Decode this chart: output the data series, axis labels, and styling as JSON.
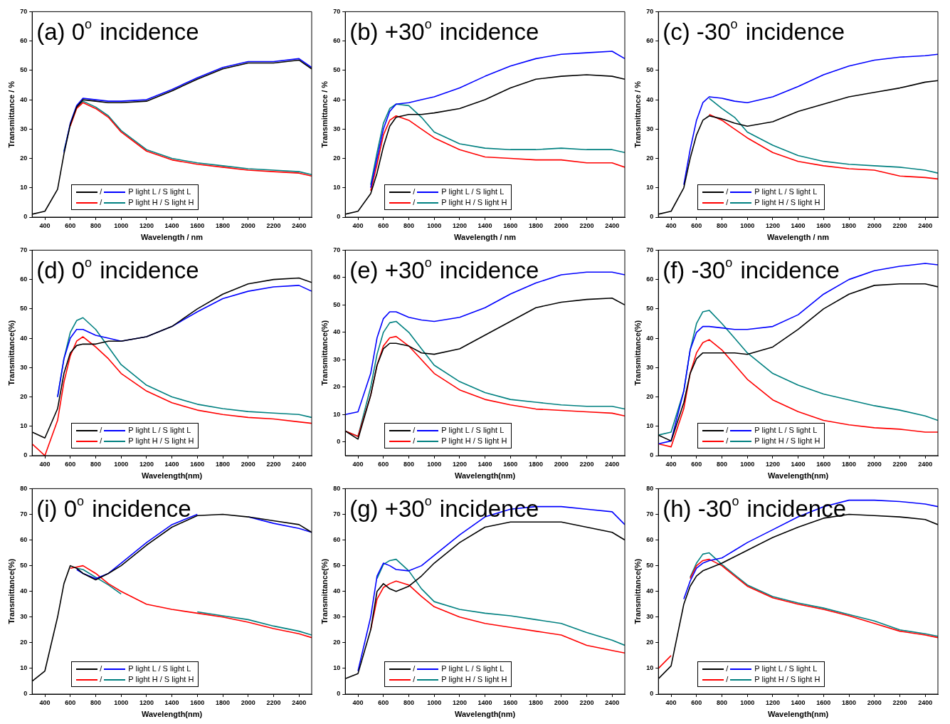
{
  "chart_data": [
    {
      "type": "line",
      "title": "(a) 0$^{o}$ incidence",
      "xlabel": "Wavelength / nm",
      "ylabel": "Transmittance / %",
      "xlim": [
        300,
        2500
      ],
      "xticks": [
        400,
        600,
        800,
        1000,
        1200,
        1400,
        1600,
        1800,
        2000,
        2200,
        2400
      ],
      "ylim": [
        0,
        70
      ],
      "yticks": [
        0,
        10,
        20,
        30,
        40,
        50,
        60,
        70
      ],
      "legend": "bottom",
      "marker": "none",
      "annotations": [
        "/"
      ],
      "x": [
        300,
        400,
        500,
        550,
        600,
        650,
        700,
        800,
        900,
        1000,
        1200,
        1400,
        1600,
        1800,
        2000,
        2200,
        2400,
        2500
      ],
      "series": [
        {
          "color": "#000000",
          "values": [
            1,
            2,
            9.5,
            21.5,
            31.5,
            37.5,
            40,
            39.5,
            39,
            39,
            39.5,
            43,
            47,
            50.5,
            52.5,
            52.5,
            53.5,
            50.5
          ]
        },
        {
          "name": "P light L / S light L",
          "color": "#0000ff",
          "values": [
            null,
            null,
            null,
            22,
            32,
            38,
            40.5,
            40,
            39.5,
            39.5,
            40,
            43.5,
            47.5,
            51,
            53,
            53,
            54,
            51
          ]
        },
        {
          "color": "#ff0000",
          "values": [
            null,
            null,
            null,
            null,
            31,
            37,
            39,
            37,
            34,
            29,
            22.5,
            19.5,
            18,
            17,
            16,
            15.5,
            15,
            14
          ]
        },
        {
          "name": "P light H / S light H",
          "color": "#008080",
          "values": [
            null,
            null,
            null,
            22.5,
            31.5,
            37.5,
            39.5,
            37.5,
            34.5,
            29.5,
            23,
            20,
            18.5,
            17.5,
            16.5,
            16,
            15.5,
            14.5
          ]
        }
      ]
    },
    {
      "type": "line",
      "title": "(b) +30$^{o}$ incidence",
      "xlabel": "Wavelength / nm",
      "ylabel": "Transmittance / %",
      "xlim": [
        300,
        2500
      ],
      "xticks": [
        400,
        600,
        800,
        1000,
        1200,
        1400,
        1600,
        1800,
        2000,
        2200,
        2400
      ],
      "ylim": [
        0,
        70
      ],
      "yticks": [
        0,
        10,
        20,
        30,
        40,
        50,
        60,
        70
      ],
      "legend": "bottom",
      "marker": "none",
      "annotations": [
        "/"
      ],
      "x": [
        300,
        400,
        500,
        550,
        600,
        650,
        700,
        800,
        900,
        1000,
        1200,
        1400,
        1600,
        1800,
        2000,
        2200,
        2400,
        2500
      ],
      "series": [
        {
          "color": "#000000",
          "values": [
            1,
            2,
            8,
            15,
            24,
            31,
            34,
            35,
            35,
            35.5,
            37,
            40,
            44,
            47,
            48,
            48.5,
            48,
            47
          ]
        },
        {
          "name": "P light L / S light L",
          "color": "#0000ff",
          "values": [
            null,
            null,
            10,
            20,
            30,
            36,
            38.5,
            39,
            40,
            41,
            44,
            48,
            51.5,
            54,
            55.5,
            56,
            56.5,
            54
          ]
        },
        {
          "color": "#ff0000",
          "values": [
            null,
            null,
            9,
            18,
            28,
            33,
            34.5,
            33,
            30,
            27,
            23,
            20.5,
            20,
            19.5,
            19.5,
            18.5,
            18.5,
            17
          ]
        },
        {
          "name": "P light H / S light H",
          "color": "#008080",
          "values": [
            null,
            null,
            11,
            22,
            32,
            37,
            38.5,
            38,
            34,
            29,
            25,
            23.5,
            23,
            23,
            23.5,
            23,
            23,
            22
          ]
        }
      ]
    },
    {
      "type": "line",
      "title": "(c) -30$^{o}$ incidence",
      "xlabel": "Wavelength / nm",
      "ylabel": "Transmittance / %",
      "xlim": [
        300,
        2500
      ],
      "xticks": [
        400,
        600,
        800,
        1000,
        1200,
        1400,
        1600,
        1800,
        2000,
        2200,
        2400
      ],
      "ylim": [
        0,
        70
      ],
      "yticks": [
        0,
        10,
        20,
        30,
        40,
        50,
        60,
        70
      ],
      "legend": "bottom",
      "marker": "none",
      "annotations": [
        "/"
      ],
      "x": [
        300,
        400,
        500,
        550,
        600,
        650,
        700,
        800,
        900,
        1000,
        1200,
        1400,
        1600,
        1800,
        2000,
        2200,
        2400,
        2500
      ],
      "series": [
        {
          "color": "#000000",
          "values": [
            1,
            2,
            10,
            20,
            28,
            33,
            34.5,
            33.5,
            32,
            31,
            32.5,
            36,
            38.5,
            41,
            42.5,
            44,
            46,
            46.5
          ]
        },
        {
          "name": "P light L / S light L",
          "color": "#0000ff",
          "values": [
            null,
            null,
            11,
            23,
            33,
            39,
            41,
            40.5,
            39.5,
            39,
            41,
            44.5,
            48.5,
            51.5,
            53.5,
            54.5,
            55,
            55.5
          ]
        },
        {
          "color": "#ff0000",
          "values": [
            null,
            null,
            null,
            null,
            null,
            null,
            35,
            33,
            30,
            27,
            22,
            19,
            17.5,
            16.5,
            16,
            14,
            13.5,
            13
          ]
        },
        {
          "name": "P light H / S light H",
          "color": "#008080",
          "values": [
            null,
            null,
            null,
            null,
            null,
            null,
            40.5,
            37,
            34,
            29,
            24.5,
            21,
            19,
            18,
            17.5,
            17,
            16,
            15
          ]
        }
      ]
    },
    {
      "type": "line",
      "title": "(d) 0$^{o}$ incidence",
      "xlabel": "Wavelength(nm)",
      "ylabel": "Transmittance(%)",
      "xlim": [
        300,
        2500
      ],
      "xticks": [
        400,
        600,
        800,
        1000,
        1200,
        1400,
        1600,
        1800,
        2000,
        2200,
        2400
      ],
      "ylim": [
        0,
        70
      ],
      "yticks": [
        0,
        10,
        20,
        30,
        40,
        50,
        60,
        70
      ],
      "legend": "bottom",
      "marker": "none",
      "annotations": [
        "/"
      ],
      "x": [
        300,
        400,
        500,
        550,
        600,
        650,
        700,
        800,
        900,
        1000,
        1200,
        1400,
        1600,
        1800,
        2000,
        2200,
        2400,
        2500
      ],
      "series": [
        {
          "color": "#000000",
          "values": [
            8,
            6,
            16,
            28,
            35,
            37.5,
            38,
            38,
            39,
            39,
            40.5,
            44,
            50,
            55,
            58.5,
            60,
            60.5,
            59
          ]
        },
        {
          "name": "P light L / S light L",
          "color": "#0000ff",
          "values": [
            null,
            null,
            20,
            33,
            40,
            43,
            43,
            41,
            40,
            39,
            40.5,
            44,
            49,
            53.5,
            56,
            57.5,
            58,
            56
          ]
        },
        {
          "color": "#ff0000",
          "values": [
            4,
            0,
            12,
            25,
            34,
            39,
            40.5,
            37,
            33,
            28,
            22,
            18,
            15.5,
            14,
            13,
            12.5,
            11.5,
            11
          ]
        },
        {
          "name": "P light H / S light H",
          "color": "#008080",
          "values": [
            null,
            null,
            20,
            33,
            42,
            46,
            47,
            43,
            37,
            31,
            24,
            20,
            17.5,
            16,
            15,
            14.5,
            14,
            13
          ]
        }
      ]
    },
    {
      "type": "line",
      "title": "(e) +30$^{o}$ incidence",
      "xlabel": "Wavelength(nm)",
      "ylabel": "Transmittance(%)",
      "xlim": [
        300,
        2500
      ],
      "xticks": [
        400,
        600,
        800,
        1000,
        1200,
        1400,
        1600,
        1800,
        2000,
        2200,
        2400
      ],
      "ylim": [
        -5,
        70
      ],
      "yticks": [
        0,
        10,
        20,
        30,
        40,
        50,
        60,
        70
      ],
      "legend": "bottom",
      "marker": "none",
      "annotations": [
        "/"
      ],
      "x": [
        300,
        400,
        500,
        550,
        600,
        650,
        700,
        800,
        900,
        1000,
        1200,
        1400,
        1600,
        1800,
        2000,
        2200,
        2400,
        2500
      ],
      "series": [
        {
          "color": "#000000",
          "values": [
            4,
            1,
            17,
            28,
            34,
            36,
            36,
            35,
            32.5,
            32,
            34,
            39,
            44,
            49,
            51,
            52,
            52.5,
            50
          ]
        },
        {
          "name": "P light L / S light L",
          "color": "#0000ff",
          "values": [
            10,
            11,
            25,
            38,
            45,
            47.5,
            47.5,
            45.5,
            44.5,
            44,
            45.5,
            49,
            54,
            58,
            61,
            62,
            62,
            61
          ]
        },
        {
          "color": "#ff0000",
          "values": [
            4,
            2,
            17,
            28,
            35,
            38,
            38.5,
            35,
            30,
            25,
            19,
            15.5,
            13.5,
            12,
            11.5,
            11,
            10.5,
            9.5
          ]
        },
        {
          "name": "P light H / S light H",
          "color": "#008080",
          "values": [
            4,
            2,
            20,
            32,
            40,
            43.5,
            44,
            40,
            34,
            28,
            22,
            18,
            15.5,
            14.5,
            13.5,
            13,
            13,
            12
          ]
        }
      ]
    },
    {
      "type": "line",
      "title": "(f) -30$^{o}$ incidence",
      "xlabel": "Wavelength(nm)",
      "ylabel": "Transmittance(%)",
      "xlim": [
        300,
        2500
      ],
      "xticks": [
        400,
        600,
        800,
        1000,
        1200,
        1400,
        1600,
        1800,
        2000,
        2200,
        2400
      ],
      "ylim": [
        0,
        70
      ],
      "yticks": [
        0,
        10,
        20,
        30,
        40,
        50,
        60,
        70
      ],
      "legend": "bottom",
      "marker": "none",
      "annotations": [
        "/"
      ],
      "x": [
        300,
        400,
        500,
        550,
        600,
        650,
        700,
        800,
        900,
        1000,
        1200,
        1400,
        1600,
        1800,
        2000,
        2200,
        2400,
        2500
      ],
      "series": [
        {
          "color": "#000000",
          "values": [
            7,
            5,
            18,
            28,
            33,
            35,
            35,
            35,
            35,
            34.5,
            37,
            43,
            50,
            55,
            58,
            58.5,
            58.5,
            57.5
          ]
        },
        {
          "name": "P light L / S light L",
          "color": "#0000ff",
          "values": [
            4,
            5,
            22,
            36,
            42,
            44,
            44,
            43.5,
            43,
            43,
            44,
            48,
            55,
            60,
            63,
            64.5,
            65.5,
            65
          ]
        },
        {
          "color": "#ff0000",
          "values": [
            4,
            3,
            16,
            28,
            35,
            38.5,
            39.5,
            36,
            31,
            26,
            19,
            15,
            12,
            10.5,
            9.5,
            9,
            8,
            8
          ]
        },
        {
          "name": "P light H / S light H",
          "color": "#008080",
          "values": [
            7,
            8,
            22,
            36,
            45,
            49,
            49.5,
            45,
            40,
            35,
            28,
            24,
            21,
            19,
            17,
            15.5,
            13.5,
            12
          ]
        }
      ]
    },
    {
      "type": "line",
      "title": "(i) 0$^{o}$ incidence",
      "xlabel": "Wavelength(nm)",
      "ylabel": "Transmittance(%)",
      "xlim": [
        300,
        2500
      ],
      "xticks": [
        400,
        600,
        800,
        1000,
        1200,
        1400,
        1600,
        1800,
        2000,
        2200,
        2400
      ],
      "ylim": [
        0,
        80
      ],
      "yticks": [
        0,
        10,
        20,
        30,
        40,
        50,
        60,
        70,
        80
      ],
      "legend": "bottom",
      "marker": "none",
      "annotations": [
        "/"
      ],
      "x": [
        300,
        400,
        500,
        550,
        600,
        650,
        700,
        800,
        900,
        1000,
        1200,
        1400,
        1600,
        1800,
        2000,
        2200,
        2400,
        2500
      ],
      "series": [
        {
          "color": "#000000",
          "values": [
            5,
            9,
            30,
            43,
            50,
            49,
            47,
            44.5,
            47,
            50,
            58,
            65,
            69.5,
            70,
            69,
            67.5,
            66,
            63
          ]
        },
        {
          "name": "P light L / S light L",
          "color": "#0000ff",
          "values": [
            null,
            null,
            null,
            null,
            null,
            48.5,
            47,
            45,
            47,
            51,
            59,
            66,
            70,
            null,
            69,
            66.5,
            64.5,
            63
          ]
        },
        {
          "color": "#ff0000",
          "values": [
            null,
            null,
            null,
            null,
            49,
            49.5,
            50,
            47,
            43,
            40,
            35,
            33,
            31.5,
            30,
            28,
            25.5,
            23.5,
            22
          ]
        },
        {
          "name": "P light H / S light H",
          "color": "#008080",
          "values": [
            null,
            null,
            null,
            null,
            null,
            49,
            48.5,
            45.5,
            42.5,
            39,
            null,
            null,
            32,
            30.5,
            29,
            26.5,
            24.5,
            23
          ]
        }
      ]
    },
    {
      "type": "line",
      "title": "(g) +30$^{o}$ incidence",
      "xlabel": "Wavelength(nm)",
      "ylabel": "Transmittance(%)",
      "xlim": [
        300,
        2500
      ],
      "xticks": [
        400,
        600,
        800,
        1000,
        1200,
        1400,
        1600,
        1800,
        2000,
        2200,
        2400
      ],
      "ylim": [
        0,
        80
      ],
      "yticks": [
        0,
        10,
        20,
        30,
        40,
        50,
        60,
        70,
        80
      ],
      "legend": "bottom",
      "marker": "none",
      "annotations": [
        "/"
      ],
      "x": [
        300,
        400,
        500,
        550,
        600,
        650,
        700,
        800,
        900,
        1000,
        1200,
        1400,
        1600,
        1800,
        2000,
        2200,
        2400,
        2500
      ],
      "series": [
        {
          "color": "#000000",
          "values": [
            6,
            8,
            25,
            40,
            43,
            41,
            40,
            42,
            46,
            51,
            59,
            65,
            67,
            67,
            67,
            65,
            63,
            60
          ]
        },
        {
          "name": "P light L / S light L",
          "color": "#0000ff",
          "values": [
            null,
            9,
            30,
            46,
            51,
            50,
            48.5,
            48,
            50,
            54,
            62,
            69,
            72,
            73,
            73,
            72,
            71,
            66
          ]
        },
        {
          "color": "#ff0000",
          "values": [
            null,
            null,
            25,
            37,
            41.5,
            43,
            44,
            42.5,
            38,
            34,
            30,
            27.5,
            26,
            24.5,
            23,
            19,
            17,
            16
          ]
        },
        {
          "name": "P light H / S light H",
          "color": "#008080",
          "values": [
            null,
            null,
            null,
            45,
            50.5,
            52,
            52.5,
            48,
            41,
            36,
            33,
            31.5,
            30.5,
            29,
            27.5,
            24,
            21,
            19
          ]
        }
      ]
    },
    {
      "type": "line",
      "title": "(h) -30$^{o}$ incidence",
      "xlabel": "Wavelength(nm)",
      "ylabel": "Transmittance(%)",
      "xlim": [
        300,
        2500
      ],
      "xticks": [
        400,
        600,
        800,
        1000,
        1200,
        1400,
        1600,
        1800,
        2000,
        2200,
        2400
      ],
      "ylim": [
        0,
        80
      ],
      "yticks": [
        0,
        10,
        20,
        30,
        40,
        50,
        60,
        70,
        80
      ],
      "legend": "bottom",
      "marker": "none",
      "annotations": [
        "/"
      ],
      "x": [
        300,
        400,
        500,
        550,
        600,
        650,
        700,
        800,
        900,
        1000,
        1200,
        1400,
        1600,
        1800,
        2000,
        2200,
        2400,
        2500
      ],
      "series": [
        {
          "color": "#000000",
          "values": [
            6,
            11,
            35,
            42,
            46,
            48,
            49,
            51,
            53.5,
            56,
            61,
            65,
            68.5,
            70,
            69.5,
            69,
            68,
            66
          ]
        },
        {
          "name": "P light L / S light L",
          "color": "#0000ff",
          "values": [
            null,
            null,
            37,
            44,
            49,
            51,
            52,
            53,
            56,
            59,
            64,
            69,
            73,
            75.5,
            75.5,
            75,
            74,
            73
          ]
        },
        {
          "color": "#ff0000",
          "values": [
            10,
            15,
            null,
            45,
            50,
            52,
            52.5,
            50,
            46,
            42,
            37.5,
            35,
            33,
            30.5,
            27.5,
            24.5,
            23,
            22
          ]
        },
        {
          "name": "P light H / S light H",
          "color": "#008080",
          "values": [
            null,
            null,
            null,
            45.5,
            51,
            54.5,
            55,
            50.5,
            46.5,
            42.5,
            38,
            35.5,
            33.5,
            31,
            28.5,
            25,
            23.5,
            22.5
          ]
        }
      ]
    }
  ]
}
